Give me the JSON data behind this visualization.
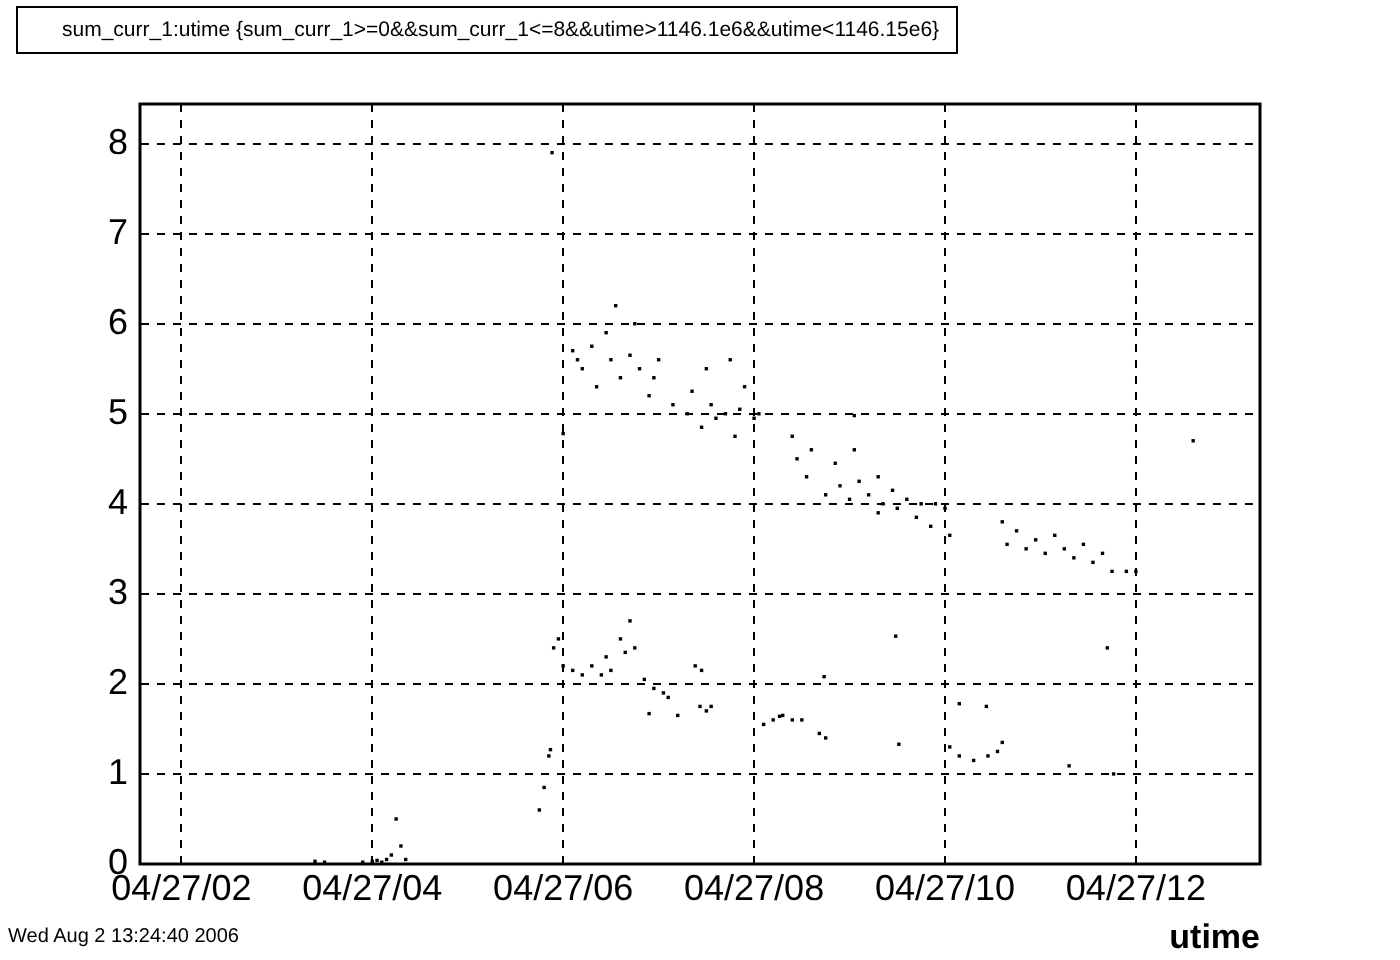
{
  "chart_data": {
    "type": "scatter",
    "title": "sum_curr_1:utime {sum_curr_1>=0&&sum_curr_1<=8&&utime>1146.1e6&&utime<1146.15e6}",
    "xlabel": "utime",
    "annotations": [
      "Wed Aug  2 13:24:40 2006"
    ],
    "x": [
      "2006-04-27T03:24",
      "2006-04-27T03:30",
      "2006-04-27T03:54",
      "2006-04-27T04:00",
      "2006-04-27T04:03",
      "2006-04-27T04:06",
      "2006-04-27T04:09",
      "2006-04-27T04:12",
      "2006-04-27T04:15",
      "2006-04-27T04:18",
      "2006-04-27T04:21",
      "2006-04-27T05:45",
      "2006-04-27T05:48",
      "2006-04-27T05:51",
      "2006-04-27T05:52",
      "2006-04-27T05:53",
      "2006-04-27T05:54",
      "2006-04-27T05:57",
      "2006-04-27T06:00",
      "2006-04-27T06:06",
      "2006-04-27T06:12",
      "2006-04-27T06:18",
      "2006-04-27T06:24",
      "2006-04-27T06:27",
      "2006-04-27T06:30",
      "2006-04-27T06:36",
      "2006-04-27T06:39",
      "2006-04-27T06:42",
      "2006-04-27T06:45",
      "2006-04-27T06:51",
      "2006-04-27T06:54",
      "2006-04-27T06:57",
      "2006-04-27T07:03",
      "2006-04-27T07:06",
      "2006-04-27T07:12",
      "2006-04-27T07:23",
      "2006-04-27T07:26",
      "2006-04-27T07:27",
      "2006-04-27T07:30",
      "2006-04-27T07:33",
      "2006-04-27T08:06",
      "2006-04-27T08:12",
      "2006-04-27T08:16",
      "2006-04-27T08:18",
      "2006-04-27T08:24",
      "2006-04-27T08:30",
      "2006-04-27T08:41",
      "2006-04-27T08:44",
      "2006-04-27T08:45",
      "2006-04-27T09:29",
      "2006-04-27T09:31",
      "2006-04-27T10:03",
      "2006-04-27T10:09",
      "2006-04-27T10:09",
      "2006-04-27T10:18",
      "2006-04-27T10:26",
      "2006-04-27T10:27",
      "2006-04-27T10:33",
      "2006-04-27T10:36",
      "2006-04-27T11:18",
      "2006-04-27T11:42",
      "2006-04-27T11:46",
      "2006-04-27T06:00",
      "2006-04-27T06:06",
      "2006-04-27T06:09",
      "2006-04-27T06:12",
      "2006-04-27T06:18",
      "2006-04-27T06:21",
      "2006-04-27T06:27",
      "2006-04-27T06:30",
      "2006-04-27T06:33",
      "2006-04-27T06:36",
      "2006-04-27T06:42",
      "2006-04-27T06:45",
      "2006-04-27T06:48",
      "2006-04-27T06:54",
      "2006-04-27T06:57",
      "2006-04-27T07:00",
      "2006-04-27T07:09",
      "2006-04-27T07:18",
      "2006-04-27T07:21",
      "2006-04-27T07:27",
      "2006-04-27T07:30",
      "2006-04-27T07:33",
      "2006-04-27T07:36",
      "2006-04-27T07:42",
      "2006-04-27T07:45",
      "2006-04-27T07:48",
      "2006-04-27T07:51",
      "2006-04-27T07:54",
      "2006-04-27T08:00",
      "2006-04-27T08:03",
      "2006-04-27T08:24",
      "2006-04-27T08:27",
      "2006-04-27T08:33",
      "2006-04-27T08:36",
      "2006-04-27T08:45",
      "2006-04-27T08:51",
      "2006-04-27T08:54",
      "2006-04-27T09:00",
      "2006-04-27T09:03",
      "2006-04-27T09:03",
      "2006-04-27T09:06",
      "2006-04-27T09:12",
      "2006-04-27T09:18",
      "2006-04-27T09:18",
      "2006-04-27T09:21",
      "2006-04-27T09:27",
      "2006-04-27T09:30",
      "2006-04-27T09:36",
      "2006-04-27T09:42",
      "2006-04-27T09:45",
      "2006-04-27T09:51",
      "2006-04-27T09:54",
      "2006-04-27T10:00",
      "2006-04-27T10:03",
      "2006-04-27T10:36",
      "2006-04-27T10:39",
      "2006-04-27T10:45",
      "2006-04-27T10:51",
      "2006-04-27T10:57",
      "2006-04-27T11:03",
      "2006-04-27T11:09",
      "2006-04-27T11:15",
      "2006-04-27T11:21",
      "2006-04-27T11:27",
      "2006-04-27T11:33",
      "2006-04-27T11:39",
      "2006-04-27T11:45",
      "2006-04-27T11:54",
      "2006-04-27T12:00",
      "2006-04-27T12:36"
    ],
    "values": [
      0.03,
      0.02,
      0.02,
      0.03,
      0.04,
      0.02,
      0.05,
      0.1,
      0.5,
      0.2,
      0.05,
      0.6,
      0.85,
      1.2,
      1.27,
      7.9,
      2.4,
      2.5,
      2.2,
      2.15,
      2.1,
      2.2,
      2.1,
      2.3,
      2.15,
      2.5,
      2.35,
      2.7,
      2.4,
      2.05,
      1.67,
      1.95,
      1.9,
      1.85,
      1.65,
      2.2,
      1.75,
      2.15,
      1.7,
      1.75,
      1.55,
      1.6,
      1.64,
      1.65,
      1.6,
      1.6,
      1.45,
      2.08,
      1.4,
      2.53,
      1.33,
      1.3,
      1.2,
      1.78,
      1.15,
      1.75,
      1.2,
      1.25,
      1.35,
      1.09,
      2.4,
      1.0,
      4.78,
      5.7,
      5.6,
      5.5,
      5.75,
      5.3,
      5.9,
      5.6,
      6.2,
      5.4,
      5.65,
      6.0,
      5.5,
      5.2,
      5.4,
      5.6,
      5.1,
      5.0,
      5.25,
      4.85,
      5.5,
      5.1,
      4.95,
      5.0,
      5.6,
      4.75,
      5.05,
      5.3,
      4.95,
      5.0,
      4.75,
      4.5,
      4.3,
      4.6,
      4.1,
      4.45,
      4.2,
      4.05,
      4.6,
      4.98,
      4.25,
      4.1,
      4.3,
      3.9,
      4.0,
      4.15,
      3.95,
      4.05,
      3.85,
      4.0,
      3.75,
      4.0,
      3.95,
      3.65,
      3.8,
      3.55,
      3.7,
      3.5,
      3.6,
      3.45,
      3.65,
      3.5,
      3.4,
      3.55,
      3.35,
      3.45,
      3.25,
      3.25,
      3.25,
      4.7
    ],
    "color": "#000000",
    "marker": "square",
    "grid": true,
    "legend": false,
    "xlim": [
      "2006-04-27T01:34",
      "2006-04-27T13:18"
    ],
    "xticks": [
      {
        "value": "2006-04-27T02:00",
        "label": "04/27/02"
      },
      {
        "value": "2006-04-27T04:00",
        "label": "04/27/04"
      },
      {
        "value": "2006-04-27T06:00",
        "label": "04/27/06"
      },
      {
        "value": "2006-04-27T08:00",
        "label": "04/27/08"
      },
      {
        "value": "2006-04-27T10:00",
        "label": "04/27/10"
      },
      {
        "value": "2006-04-27T12:00",
        "label": "04/27/12"
      }
    ],
    "ylim": [
      0,
      8.44
    ],
    "yticks": [
      0,
      1,
      2,
      3,
      4,
      5,
      6,
      7,
      8
    ]
  }
}
